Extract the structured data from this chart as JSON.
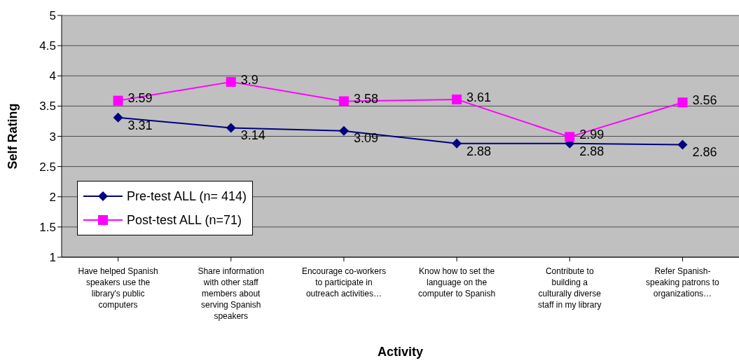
{
  "chart_data": {
    "type": "line",
    "xlabel": "Activity",
    "ylabel": "Self Rating",
    "categories": [
      "Have helped Spanish speakers use the library's public computers",
      "Share information with other staff members about serving Spanish speakers",
      "Encourage co-workers to participate in outreach activities…",
      "Know how to set the language on the computer to Spanish",
      "Contribute to building a culturally diverse staff in my library",
      "Refer Spanish-speaking patrons to organizations…"
    ],
    "series": [
      {
        "name": "Pre-test ALL (n= 414)",
        "color": "#000080",
        "marker": "diamond",
        "values": [
          3.31,
          3.14,
          3.09,
          2.88,
          2.88,
          2.86
        ]
      },
      {
        "name": "Post-test ALL (n=71)",
        "color": "#ff00ff",
        "marker": "square",
        "values": [
          3.59,
          3.9,
          3.58,
          3.61,
          2.99,
          3.56
        ]
      }
    ],
    "ylim": [
      1,
      5
    ],
    "yticks": [
      1,
      1.5,
      2,
      2.5,
      3,
      3.5,
      4,
      4.5,
      5
    ],
    "grid": "y",
    "legend": "bottom left",
    "data_labels": true,
    "line_style": "solid"
  }
}
